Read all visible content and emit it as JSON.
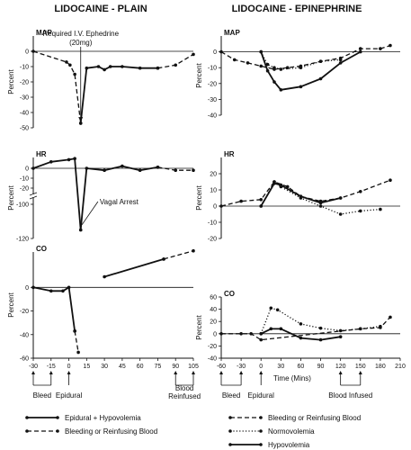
{
  "titles": {
    "left": "LIDOCAINE - PLAIN",
    "right": "LIDOCAINE - EPINEPHRINE"
  },
  "colors": {
    "ink": "#111111",
    "background": "#ffffff"
  },
  "xlabel": "Time (Mins)",
  "left_events": {
    "bleed": "Bleed",
    "epidural": "Epidural",
    "reinfused": "Blood\nReinfused"
  },
  "right_events": {
    "bleed": "Bleed",
    "epidural": "Epidural",
    "infused": "Blood Infused"
  },
  "left_legend": [
    {
      "label": "Epidural + Hypovolemia",
      "style": "solid"
    },
    {
      "label": "Bleeding or Reinfusing Blood",
      "style": "dashed"
    }
  ],
  "right_legend": [
    {
      "label": "Bleeding or Reinfusing Blood",
      "style": "dashed"
    },
    {
      "label": "Normovolemia",
      "style": "dotted"
    },
    {
      "label": "Hypovolemia",
      "style": "solid"
    }
  ],
  "chart_data": [
    {
      "type": "line",
      "panel": "MAP",
      "side": "left",
      "ylabel": "Percent",
      "xlim": [
        -30,
        105
      ],
      "ylim": [
        -50,
        10
      ],
      "yticks": [
        0,
        -10,
        -20,
        -30,
        -40,
        -50
      ],
      "xticks": [
        -30,
        -15,
        0,
        15,
        30,
        45,
        60,
        75,
        90,
        105
      ],
      "annotations": [
        {
          "text": "Required I.V. Ephedrine",
          "x": 10,
          "y": 10
        },
        {
          "text": "(20mg)",
          "x": 10,
          "y": 4
        }
      ],
      "series": [
        {
          "style": "dashed",
          "x": [
            -30,
            -2,
            1,
            5,
            10
          ],
          "y": [
            0,
            -7,
            -9,
            -15,
            -47
          ]
        },
        {
          "style": "solid",
          "x": [
            10,
            15,
            25,
            30,
            35,
            45,
            60,
            75
          ],
          "y": [
            -47,
            -11,
            -10,
            -12,
            -10,
            -10,
            -11,
            -11
          ]
        },
        {
          "style": "dashed",
          "x": [
            75,
            90,
            105
          ],
          "y": [
            -11,
            -9,
            -2
          ]
        }
      ]
    },
    {
      "type": "line",
      "panel": "HR",
      "side": "left",
      "ylabel": "Percent",
      "xlim": [
        -30,
        105
      ],
      "ylim": [
        -120,
        10
      ],
      "yticks": [
        0,
        -10,
        -20,
        -100,
        -120
      ],
      "axis_break": true,
      "annotations": [
        {
          "text": "Vagal Arrest",
          "x": 20,
          "y": -100
        }
      ],
      "series": [
        {
          "style": "solid",
          "x": [
            -30,
            -15,
            0,
            5,
            10
          ],
          "y": [
            0,
            6,
            8,
            9,
            -115
          ]
        },
        {
          "style": "solid",
          "x": [
            10,
            15,
            30,
            45,
            60,
            75
          ],
          "y": [
            -115,
            0,
            -2,
            2,
            -2,
            1
          ]
        },
        {
          "style": "dashed",
          "x": [
            75,
            90,
            105
          ],
          "y": [
            1,
            -2,
            -2
          ]
        }
      ]
    },
    {
      "type": "line",
      "panel": "CO",
      "side": "left",
      "ylabel": "Percent",
      "xlim": [
        -30,
        105
      ],
      "ylim": [
        -60,
        30
      ],
      "yticks": [
        0,
        -20,
        -40,
        -60
      ],
      "series": [
        {
          "style": "solid",
          "x": [
            -30,
            -15,
            -5,
            0,
            5
          ],
          "y": [
            0,
            -3,
            -3,
            0,
            -37
          ]
        },
        {
          "style": "dashed",
          "x": [
            5,
            8
          ],
          "y": [
            -37,
            -55
          ]
        },
        {
          "style": "solid",
          "x": [
            30,
            80
          ],
          "y": [
            9,
            24
          ]
        },
        {
          "style": "dashed",
          "x": [
            80,
            105
          ],
          "y": [
            24,
            31
          ]
        }
      ]
    },
    {
      "type": "line",
      "panel": "MAP",
      "side": "right",
      "ylabel": "Percent",
      "xlim": [
        -60,
        210
      ],
      "ylim": [
        -40,
        10
      ],
      "yticks": [
        0,
        -10,
        -20,
        -30,
        -40
      ],
      "xticks": [
        -60,
        -30,
        0,
        30,
        60,
        90,
        120,
        150,
        180,
        210
      ],
      "series": [
        {
          "style": "dashed",
          "x": [
            -60,
            -40,
            -20,
            0,
            20,
            40,
            60,
            90,
            120,
            150,
            180,
            195
          ],
          "y": [
            0,
            -5,
            -7,
            -9,
            -11,
            -10,
            -9,
            -6,
            -4,
            2,
            2,
            4
          ]
        },
        {
          "style": "dotted",
          "x": [
            0,
            10,
            20,
            30,
            60,
            90,
            120
          ],
          "y": [
            0,
            -8,
            -10,
            -11,
            -10,
            -6,
            -5
          ]
        },
        {
          "style": "solid",
          "x": [
            0,
            10,
            20,
            30,
            60,
            90,
            120,
            150
          ],
          "y": [
            0,
            -12,
            -19,
            -24,
            -22,
            -17,
            -7,
            0
          ]
        }
      ]
    },
    {
      "type": "line",
      "panel": "HR",
      "side": "right",
      "ylabel": "Percent",
      "xlim": [
        -60,
        210
      ],
      "ylim": [
        -20,
        30
      ],
      "yticks": [
        20,
        10,
        0,
        -10,
        -20
      ],
      "series": [
        {
          "style": "dashed",
          "x": [
            -60,
            -30,
            0,
            20,
            40,
            60,
            90,
            120,
            150,
            195
          ],
          "y": [
            0,
            3,
            4,
            15,
            12,
            6,
            3,
            5,
            9,
            16
          ]
        },
        {
          "style": "dotted",
          "x": [
            0,
            20,
            30,
            60,
            90,
            120,
            150,
            180
          ],
          "y": [
            0,
            15,
            12,
            5,
            0,
            -5,
            -3,
            -2
          ]
        },
        {
          "style": "solid",
          "x": [
            0,
            20,
            30,
            60,
            90,
            120
          ],
          "y": [
            0,
            14,
            13,
            6,
            2,
            5
          ]
        }
      ]
    },
    {
      "type": "line",
      "panel": "CO",
      "side": "right",
      "ylabel": "Percent",
      "xlim": [
        -60,
        210
      ],
      "ylim": [
        -40,
        60
      ],
      "yticks": [
        60,
        40,
        20,
        0,
        -20,
        -40
      ],
      "series": [
        {
          "style": "dashed",
          "x": [
            -60,
            -30,
            -15,
            0,
            150,
            180,
            195
          ],
          "y": [
            0,
            0,
            0,
            -10,
            8,
            10,
            27
          ]
        },
        {
          "style": "dotted",
          "x": [
            0,
            15,
            25,
            60,
            90,
            120,
            150,
            180
          ],
          "y": [
            0,
            42,
            39,
            16,
            9,
            5,
            8,
            12
          ]
        },
        {
          "style": "solid",
          "x": [
            0,
            15,
            30,
            60,
            90,
            120
          ],
          "y": [
            0,
            8,
            8,
            -7,
            -10,
            -5
          ]
        }
      ]
    }
  ]
}
